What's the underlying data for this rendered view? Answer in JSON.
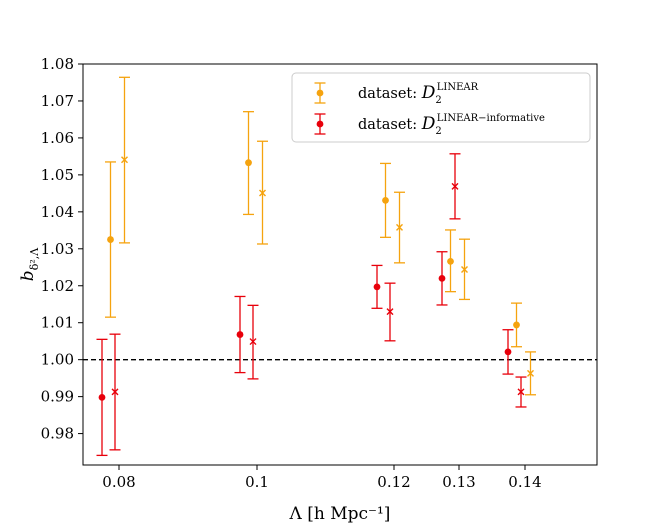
{
  "chart_data": {
    "type": "scatter",
    "xlabel": "Λ [h Mpc⁻¹]",
    "ylabel": "b",
    "ylabel_subscript": "δ²,Λ",
    "x_ticks": [
      0.08,
      0.1,
      0.12,
      0.13,
      0.14
    ],
    "x_tick_labels": [
      "0.08",
      "0.1",
      "0.12",
      "0.13",
      "0.14"
    ],
    "y_ticks": [
      0.98,
      0.99,
      1.0,
      1.01,
      1.02,
      1.03,
      1.04,
      1.05,
      1.06,
      1.07,
      1.08
    ],
    "y_tick_labels": [
      "0.98",
      "0.99",
      "1.00",
      "1.01",
      "1.02",
      "1.03",
      "1.04",
      "1.05",
      "1.06",
      "1.07",
      "1.08"
    ],
    "ylim": [
      0.9715,
      1.08
    ],
    "reference_line": {
      "y": 1.0,
      "style": "dashed",
      "color": "#000000"
    },
    "legend": {
      "placement": "top-right",
      "entries": [
        {
          "prefix": "dataset: ",
          "math": "D",
          "sub": "2",
          "sup": "LINEAR",
          "color": "#f5a30f"
        },
        {
          "prefix": "dataset: ",
          "math": "D",
          "sub": "2",
          "sup": "LINEAR−informative",
          "color": "#e8000b"
        }
      ]
    },
    "series": [
      {
        "color": "#f5a30f",
        "marker": "circle",
        "points": [
          {
            "x": 0.08,
            "y": 1.0325,
            "lo": 1.0115,
            "hi": 1.0535
          },
          {
            "x": 0.1,
            "y": 1.0533,
            "lo": 1.0393,
            "hi": 1.0671
          },
          {
            "x": 0.12,
            "y": 1.0431,
            "lo": 1.0331,
            "hi": 1.0531
          },
          {
            "x": 0.13,
            "y": 1.0266,
            "lo": 1.0184,
            "hi": 1.0351
          },
          {
            "x": 0.14,
            "y": 1.0094,
            "lo": 1.0035,
            "hi": 1.0153
          }
        ]
      },
      {
        "color": "#f5a30f",
        "marker": "x",
        "points": [
          {
            "x": 0.08,
            "y": 1.0541,
            "lo": 1.0316,
            "hi": 1.0764
          },
          {
            "x": 0.1,
            "y": 1.0451,
            "lo": 1.0313,
            "hi": 1.0591
          },
          {
            "x": 0.12,
            "y": 1.0358,
            "lo": 1.0262,
            "hi": 1.0453
          },
          {
            "x": 0.13,
            "y": 1.0244,
            "lo": 1.0163,
            "hi": 1.0326
          },
          {
            "x": 0.14,
            "y": 0.9963,
            "lo": 0.9905,
            "hi": 1.0021
          }
        ]
      },
      {
        "color": "#e8000b",
        "marker": "circle",
        "points": [
          {
            "x": 0.08,
            "y": 0.9898,
            "lo": 0.9741,
            "hi": 1.0055
          },
          {
            "x": 0.1,
            "y": 1.0068,
            "lo": 0.9965,
            "hi": 1.0171
          },
          {
            "x": 0.12,
            "y": 1.0197,
            "lo": 1.0139,
            "hi": 1.0255
          },
          {
            "x": 0.13,
            "y": 1.022,
            "lo": 1.0148,
            "hi": 1.0292
          },
          {
            "x": 0.14,
            "y": 1.0021,
            "lo": 0.9961,
            "hi": 1.0081
          }
        ]
      },
      {
        "color": "#e8000b",
        "marker": "x",
        "points": [
          {
            "x": 0.08,
            "y": 0.9913,
            "lo": 0.9756,
            "hi": 1.0069
          },
          {
            "x": 0.1,
            "y": 1.0049,
            "lo": 0.9948,
            "hi": 1.0147
          },
          {
            "x": 0.12,
            "y": 1.013,
            "lo": 1.0051,
            "hi": 1.0207
          },
          {
            "x": 0.13,
            "y": 1.0469,
            "lo": 1.0381,
            "hi": 1.0557
          },
          {
            "x": 0.14,
            "y": 0.9913,
            "lo": 0.9872,
            "hi": 0.9953
          }
        ]
      }
    ]
  }
}
